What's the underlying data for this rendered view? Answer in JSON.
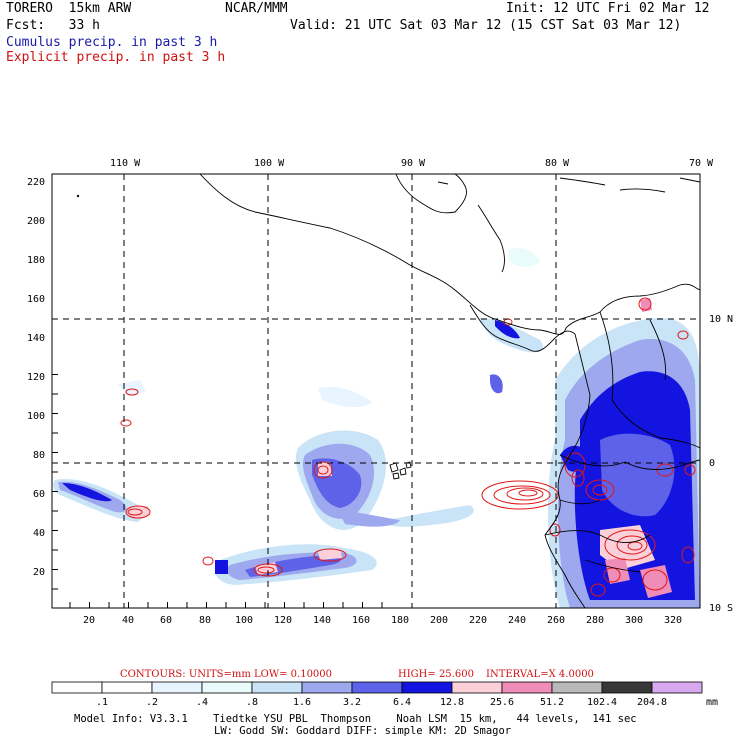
{
  "header": {
    "model": "TORERO  15km ARW",
    "org": "NCAR/MMM",
    "init": "Init: 12 UTC Fri 02 Mar 12",
    "fcst": "Fcst:   33 h",
    "valid": "Valid: 21 UTC Sat 03 Mar 12 (15 CST Sat 03 Mar 12)",
    "field1": "Cumulus precip. in past 3 h",
    "field2": "Explicit precip. in past 3 h"
  },
  "colors": {
    "field1": "#1a1aa8",
    "field2": "#d01010"
  },
  "map": {
    "lon_labels": [
      "110 W",
      "100 W",
      "90 W",
      "80 W",
      "70 W"
    ],
    "lat_labels": [
      "10 N",
      "0",
      "10 S"
    ],
    "x_ticks": [
      "20",
      "40",
      "60",
      "80",
      "100",
      "120",
      "140",
      "160",
      "180",
      "200",
      "220",
      "240",
      "260",
      "280",
      "300",
      "320"
    ],
    "y_ticks": [
      "20",
      "40",
      "60",
      "80",
      "100",
      "120",
      "140",
      "160",
      "180",
      "200",
      "220"
    ]
  },
  "contour_caption": {
    "units": "CONTOURS:  UNITS=mm  LOW= 0.10000",
    "high": "HIGH=  25.600",
    "interval": "INTERVAL=X  4.0000"
  },
  "colorbar": {
    "labels": [
      ".1",
      ".2",
      ".4",
      ".8",
      "1.6",
      "3.2",
      "6.4",
      "12.8",
      "25.6",
      "51.2",
      "102.4",
      "204.8"
    ],
    "unit": "mm",
    "colors": [
      "#ffffff",
      "#ffffff",
      "#e8f4ff",
      "#e9fbfb",
      "#c9e3f7",
      "#9ea8ee",
      "#5e62e8",
      "#1414e0",
      "#fbd0d8",
      "#f08cb8",
      "#b9b9b9",
      "#383838",
      "#d8a8f0"
    ]
  },
  "footer": {
    "line1": "Model Info: V3.3.1    Tiedtke YSU PBL  Thompson    Noah LSM  15 km,   44 levels,  141 sec",
    "line2": "LW: Godd SW: Goddard DIFF: simple KM: 2D Smagor"
  }
}
